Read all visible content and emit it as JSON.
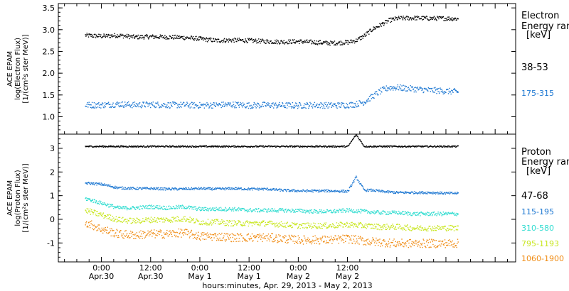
{
  "chart_data": [
    {
      "type": "scatter",
      "panel": "electron",
      "ylabel": [
        "ACE EPAM",
        "log(Electron Flux)",
        "[1/(cm²s ster MeV)]"
      ],
      "ylim": [
        0.6,
        3.6
      ],
      "yticks": [
        "1.0",
        "1.5",
        "2.0",
        "2.5",
        "3.0",
        "3.5"
      ],
      "legend_title": [
        "Electron",
        "Energy ranges",
        "[keV]"
      ],
      "grid": false,
      "series": [
        {
          "name": "38-53",
          "color": "#000000",
          "x": [
            -4,
            0,
            4,
            8,
            12,
            16,
            20,
            24,
            28,
            32,
            36,
            40,
            44,
            48,
            52,
            56,
            60,
            62,
            64,
            66,
            68,
            70,
            72,
            76,
            80,
            84,
            87
          ],
          "y": [
            2.88,
            2.86,
            2.88,
            2.84,
            2.85,
            2.84,
            2.83,
            2.8,
            2.76,
            2.77,
            2.76,
            2.74,
            2.73,
            2.74,
            2.72,
            2.7,
            2.72,
            2.76,
            2.87,
            3.02,
            3.12,
            3.22,
            3.27,
            3.28,
            3.27,
            3.27,
            3.26
          ],
          "spread": 0.05
        },
        {
          "name": "175-315",
          "color": "#1e78d2",
          "x": [
            -4,
            0,
            4,
            8,
            12,
            16,
            20,
            24,
            28,
            32,
            36,
            40,
            44,
            48,
            52,
            56,
            60,
            62,
            64,
            66,
            68,
            70,
            72,
            76,
            80,
            84,
            87
          ],
          "y": [
            1.28,
            1.28,
            1.3,
            1.28,
            1.29,
            1.28,
            1.28,
            1.27,
            1.28,
            1.29,
            1.27,
            1.28,
            1.27,
            1.27,
            1.28,
            1.27,
            1.28,
            1.3,
            1.35,
            1.48,
            1.6,
            1.68,
            1.68,
            1.65,
            1.62,
            1.6,
            1.58
          ],
          "spread": 0.07
        }
      ]
    },
    {
      "type": "scatter",
      "panel": "proton",
      "ylabel": [
        "ACE EPAM",
        "log(Proton Flux)",
        "[1/(cm²s ster MeV)]"
      ],
      "ylim": [
        -1.8,
        3.6
      ],
      "yticks": [
        "-1",
        "0",
        "1",
        "2",
        "3"
      ],
      "legend_title": [
        "Proton",
        "Energy ranges",
        "[keV]"
      ],
      "grid": false,
      "series": [
        {
          "name": "47-68",
          "color": "#000000",
          "x": [
            -4,
            12,
            28,
            44,
            56,
            60,
            62,
            64,
            72,
            80,
            87
          ],
          "y": [
            3.1,
            3.1,
            3.1,
            3.1,
            3.1,
            3.1,
            3.6,
            3.1,
            3.1,
            3.1,
            3.1
          ],
          "spread": 0.03
        },
        {
          "name": "115-195",
          "color": "#1e78d2",
          "x": [
            -4,
            0,
            4,
            8,
            12,
            16,
            20,
            24,
            28,
            32,
            36,
            40,
            44,
            48,
            52,
            56,
            60,
            62,
            64,
            66,
            68,
            72,
            76,
            80,
            84,
            87
          ],
          "y": [
            1.55,
            1.5,
            1.35,
            1.32,
            1.32,
            1.3,
            1.3,
            1.32,
            1.3,
            1.32,
            1.3,
            1.3,
            1.25,
            1.22,
            1.22,
            1.22,
            1.2,
            1.8,
            1.25,
            1.25,
            1.2,
            1.15,
            1.15,
            1.15,
            1.12,
            1.12
          ],
          "spread": 0.05
        },
        {
          "name": "310-580",
          "color": "#30dcd0",
          "x": [
            -4,
            0,
            4,
            8,
            12,
            16,
            20,
            24,
            28,
            32,
            36,
            40,
            44,
            48,
            52,
            56,
            60,
            64,
            68,
            72,
            76,
            80,
            84,
            87
          ],
          "y": [
            0.9,
            0.7,
            0.5,
            0.5,
            0.55,
            0.5,
            0.55,
            0.45,
            0.45,
            0.45,
            0.4,
            0.4,
            0.4,
            0.38,
            0.35,
            0.35,
            0.4,
            0.35,
            0.3,
            0.3,
            0.25,
            0.25,
            0.25,
            0.25
          ],
          "spread": 0.08
        },
        {
          "name": "795-1193",
          "color": "#c8e61e",
          "x": [
            -4,
            0,
            4,
            8,
            12,
            16,
            20,
            24,
            28,
            32,
            36,
            40,
            44,
            48,
            52,
            56,
            60,
            64,
            68,
            72,
            76,
            80,
            84,
            87
          ],
          "y": [
            0.4,
            0.2,
            0.0,
            -0.05,
            0.0,
            0.0,
            0.05,
            -0.1,
            -0.1,
            -0.15,
            -0.15,
            -0.15,
            -0.2,
            -0.25,
            -0.25,
            -0.25,
            -0.2,
            -0.25,
            -0.3,
            -0.3,
            -0.35,
            -0.35,
            -0.35,
            -0.35
          ],
          "spread": 0.12
        },
        {
          "name": "1060-1900",
          "color": "#f08c14",
          "x": [
            -4,
            0,
            4,
            8,
            12,
            16,
            20,
            24,
            28,
            32,
            36,
            40,
            44,
            48,
            52,
            56,
            60,
            64,
            68,
            72,
            76,
            80,
            84,
            87
          ],
          "y": [
            -0.1,
            -0.4,
            -0.6,
            -0.65,
            -0.6,
            -0.6,
            -0.55,
            -0.7,
            -0.7,
            -0.75,
            -0.75,
            -0.75,
            -0.8,
            -0.85,
            -0.85,
            -0.85,
            -0.8,
            -0.9,
            -0.95,
            -1.0,
            -1.0,
            -1.0,
            -1.0,
            -1.0
          ],
          "spread": 0.18
        }
      ]
    }
  ],
  "x_axis": {
    "xlim": [
      -10.5,
      101
    ],
    "xlabel": "hours:minutes, Apr. 29, 2013 - May  2, 2013",
    "ticks": [
      {
        "x": 0,
        "time": "0:00",
        "date": "Apr.30"
      },
      {
        "x": 12,
        "time": "12:00",
        "date": "Apr.30"
      },
      {
        "x": 24,
        "time": "0:00",
        "date": "May 1"
      },
      {
        "x": 36,
        "time": "12:00",
        "date": "May 1"
      },
      {
        "x": 48,
        "time": "0:00",
        "date": "May 2"
      },
      {
        "x": 60,
        "time": "12:00",
        "date": "May 2"
      }
    ],
    "minor_step_hours": 3
  }
}
